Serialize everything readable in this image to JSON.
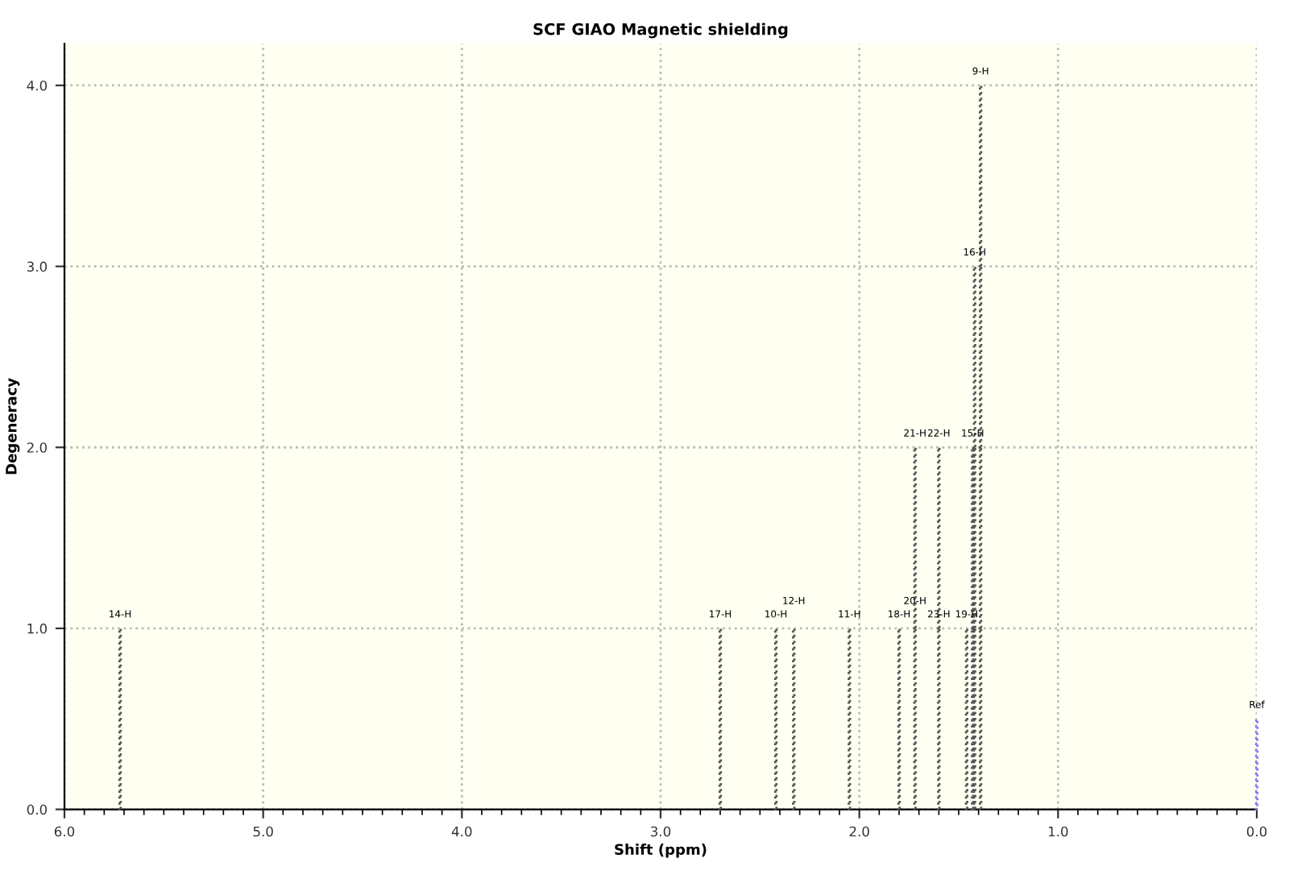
{
  "chart_data": {
    "type": "bar",
    "title": "SCF GIAO Magnetic shielding",
    "xlabel": "Shift (ppm)",
    "ylabel": "Degeneracy",
    "stacked": true,
    "x": [
      5.72,
      2.7,
      2.42,
      2.33,
      2.05,
      1.8,
      1.72,
      1.6,
      1.46,
      1.43,
      1.42,
      1.39,
      0.0
    ],
    "series": [
      {
        "values": [
          1,
          1,
          1,
          1,
          1,
          1,
          1,
          1,
          1,
          1,
          1,
          1,
          0.5
        ],
        "colors": [
          "#555555",
          "#555555",
          "#555555",
          "#555555",
          "#555555",
          "#555555",
          "#555555",
          "#555555",
          "#555555",
          "#555555",
          "#555555",
          "#555555",
          "#7878ff"
        ]
      },
      {
        "values": [
          null,
          null,
          null,
          null,
          null,
          null,
          1,
          1,
          null,
          1,
          1,
          1,
          null
        ],
        "color": "#555555"
      },
      {
        "values": [
          null,
          null,
          null,
          null,
          null,
          null,
          null,
          null,
          null,
          null,
          1,
          1,
          null
        ],
        "color": "#555555"
      },
      {
        "values": [
          null,
          null,
          null,
          null,
          null,
          null,
          null,
          null,
          null,
          null,
          null,
          1,
          null
        ],
        "color": "#555555"
      }
    ],
    "annotations": [
      {
        "text": "14-H",
        "x": 5.72,
        "y": 1
      },
      {
        "text": "17-H",
        "x": 2.7,
        "y": 1
      },
      {
        "text": "10-H",
        "x": 2.42,
        "y": 1
      },
      {
        "text": "12-H",
        "x": 2.33,
        "y": 1
      },
      {
        "text": "11-H",
        "x": 2.05,
        "y": 1
      },
      {
        "text": "18-H",
        "x": 1.8,
        "y": 1
      },
      {
        "text": "20-H",
        "x": 1.72,
        "y": 1
      },
      {
        "text": "21-H",
        "x": 1.72,
        "y": 2
      },
      {
        "text": "23-H",
        "x": 1.6,
        "y": 1
      },
      {
        "text": "22-H",
        "x": 1.6,
        "y": 2
      },
      {
        "text": "19-H",
        "x": 1.46,
        "y": 1
      },
      {
        "text": "15-H",
        "x": 1.43,
        "y": 2
      },
      {
        "text": "16-H",
        "x": 1.42,
        "y": 3
      },
      {
        "text": "9-H",
        "x": 1.39,
        "y": 4
      },
      {
        "text": "Ref",
        "x": 0.0,
        "y": 0.5
      }
    ],
    "xlim": [
      6.0,
      0.0
    ],
    "ylim": [
      0.0,
      4.23
    ],
    "xticks": [
      {
        "value": 6.0,
        "label": "6.0"
      },
      {
        "value": 5.0,
        "label": "5.0"
      },
      {
        "value": 4.0,
        "label": "4.0"
      },
      {
        "value": 3.0,
        "label": "3.0"
      },
      {
        "value": 2.0,
        "label": "2.0"
      },
      {
        "value": 1.0,
        "label": "1.0"
      },
      {
        "value": 0.0,
        "label": "0.0"
      },
      {
        "value": 5.9,
        "label": null
      },
      {
        "value": 5.8,
        "label": null
      },
      {
        "value": 5.7,
        "label": null
      },
      {
        "value": 5.6,
        "label": null
      },
      {
        "value": 5.5,
        "label": null
      },
      {
        "value": 5.4,
        "label": null
      },
      {
        "value": 5.3,
        "label": null
      },
      {
        "value": 5.2,
        "label": null
      },
      {
        "value": 5.1,
        "label": null
      },
      {
        "value": 4.9,
        "label": null
      },
      {
        "value": 4.8,
        "label": null
      },
      {
        "value": 4.7,
        "label": null
      },
      {
        "value": 4.6,
        "label": null
      },
      {
        "value": 4.5,
        "label": null
      },
      {
        "value": 4.4,
        "label": null
      },
      {
        "value": 4.3,
        "label": null
      },
      {
        "value": 4.2,
        "label": null
      },
      {
        "value": 4.1,
        "label": null
      },
      {
        "value": 3.9,
        "label": null
      },
      {
        "value": 3.8,
        "label": null
      },
      {
        "value": 3.7,
        "label": null
      },
      {
        "value": 3.6,
        "label": null
      },
      {
        "value": 3.5,
        "label": null
      },
      {
        "value": 3.4,
        "label": null
      },
      {
        "value": 3.3,
        "label": null
      },
      {
        "value": 3.2,
        "label": null
      },
      {
        "value": 3.1,
        "label": null
      },
      {
        "value": 2.9,
        "label": null
      },
      {
        "value": 2.8,
        "label": null
      },
      {
        "value": 2.7,
        "label": null
      },
      {
        "value": 2.6,
        "label": null
      },
      {
        "value": 2.5,
        "label": null
      },
      {
        "value": 2.4,
        "label": null
      },
      {
        "value": 2.3,
        "label": null
      },
      {
        "value": 2.2,
        "label": null
      },
      {
        "value": 2.1,
        "label": null
      },
      {
        "value": 1.9,
        "label": null
      },
      {
        "value": 1.8,
        "label": null
      },
      {
        "value": 1.7,
        "label": null
      },
      {
        "value": 1.6,
        "label": null
      },
      {
        "value": 1.5,
        "label": null
      },
      {
        "value": 1.4,
        "label": null
      },
      {
        "value": 1.3,
        "label": null
      },
      {
        "value": 1.2,
        "label": null
      },
      {
        "value": 1.1,
        "label": null
      },
      {
        "value": 0.9,
        "label": null
      },
      {
        "value": 0.8,
        "label": null
      },
      {
        "value": 0.7,
        "label": null
      },
      {
        "value": 0.6,
        "label": null
      },
      {
        "value": 0.5,
        "label": null
      },
      {
        "value": 0.4,
        "label": null
      },
      {
        "value": 0.3,
        "label": null
      },
      {
        "value": 0.2,
        "label": null
      },
      {
        "value": 0.1,
        "label": null
      }
    ],
    "yticks": [
      {
        "value": 0,
        "label": "0.0"
      },
      {
        "value": 1,
        "label": "1.0"
      },
      {
        "value": 2,
        "label": "2.0"
      },
      {
        "value": 3,
        "label": "3.0"
      },
      {
        "value": 4,
        "label": "4.0"
      }
    ],
    "grid": true,
    "line_style": "dotted",
    "legend": false
  }
}
